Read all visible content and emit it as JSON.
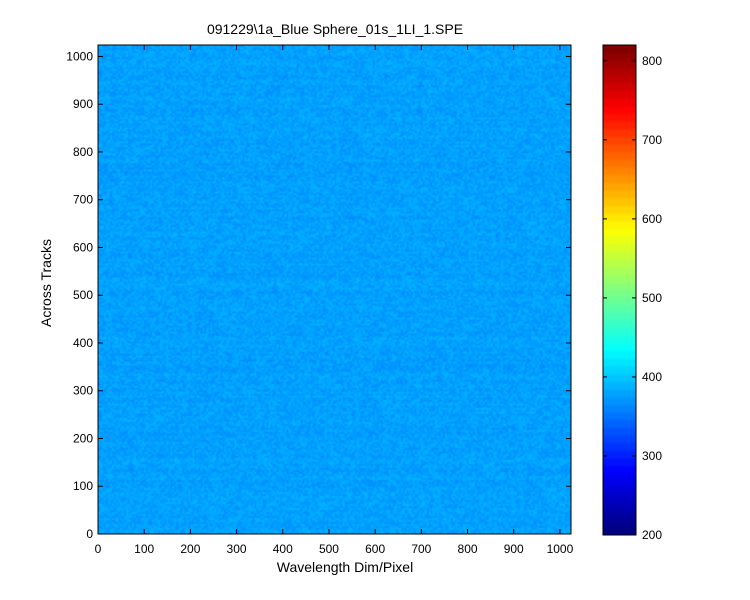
{
  "chart_data": {
    "type": "heatmap",
    "title": "091229\\1a_Blue Sphere_01s_1LI_1.SPE",
    "xlabel": "Wavelength Dim/Pixel",
    "ylabel": "Across Tracks",
    "xlim": [
      0,
      1024
    ],
    "ylim": [
      0,
      1024
    ],
    "x_ticks": [
      0,
      100,
      200,
      300,
      400,
      500,
      600,
      700,
      800,
      900,
      1000
    ],
    "y_ticks": [
      0,
      100,
      200,
      300,
      400,
      500,
      600,
      700,
      800,
      900,
      1000
    ],
    "colorbar": {
      "colormap": "jet",
      "range": [
        200,
        820
      ],
      "ticks": [
        200,
        300,
        400,
        500,
        600,
        700,
        800
      ]
    },
    "field": {
      "mean_value": 375,
      "noise_amplitude": 12
    }
  }
}
